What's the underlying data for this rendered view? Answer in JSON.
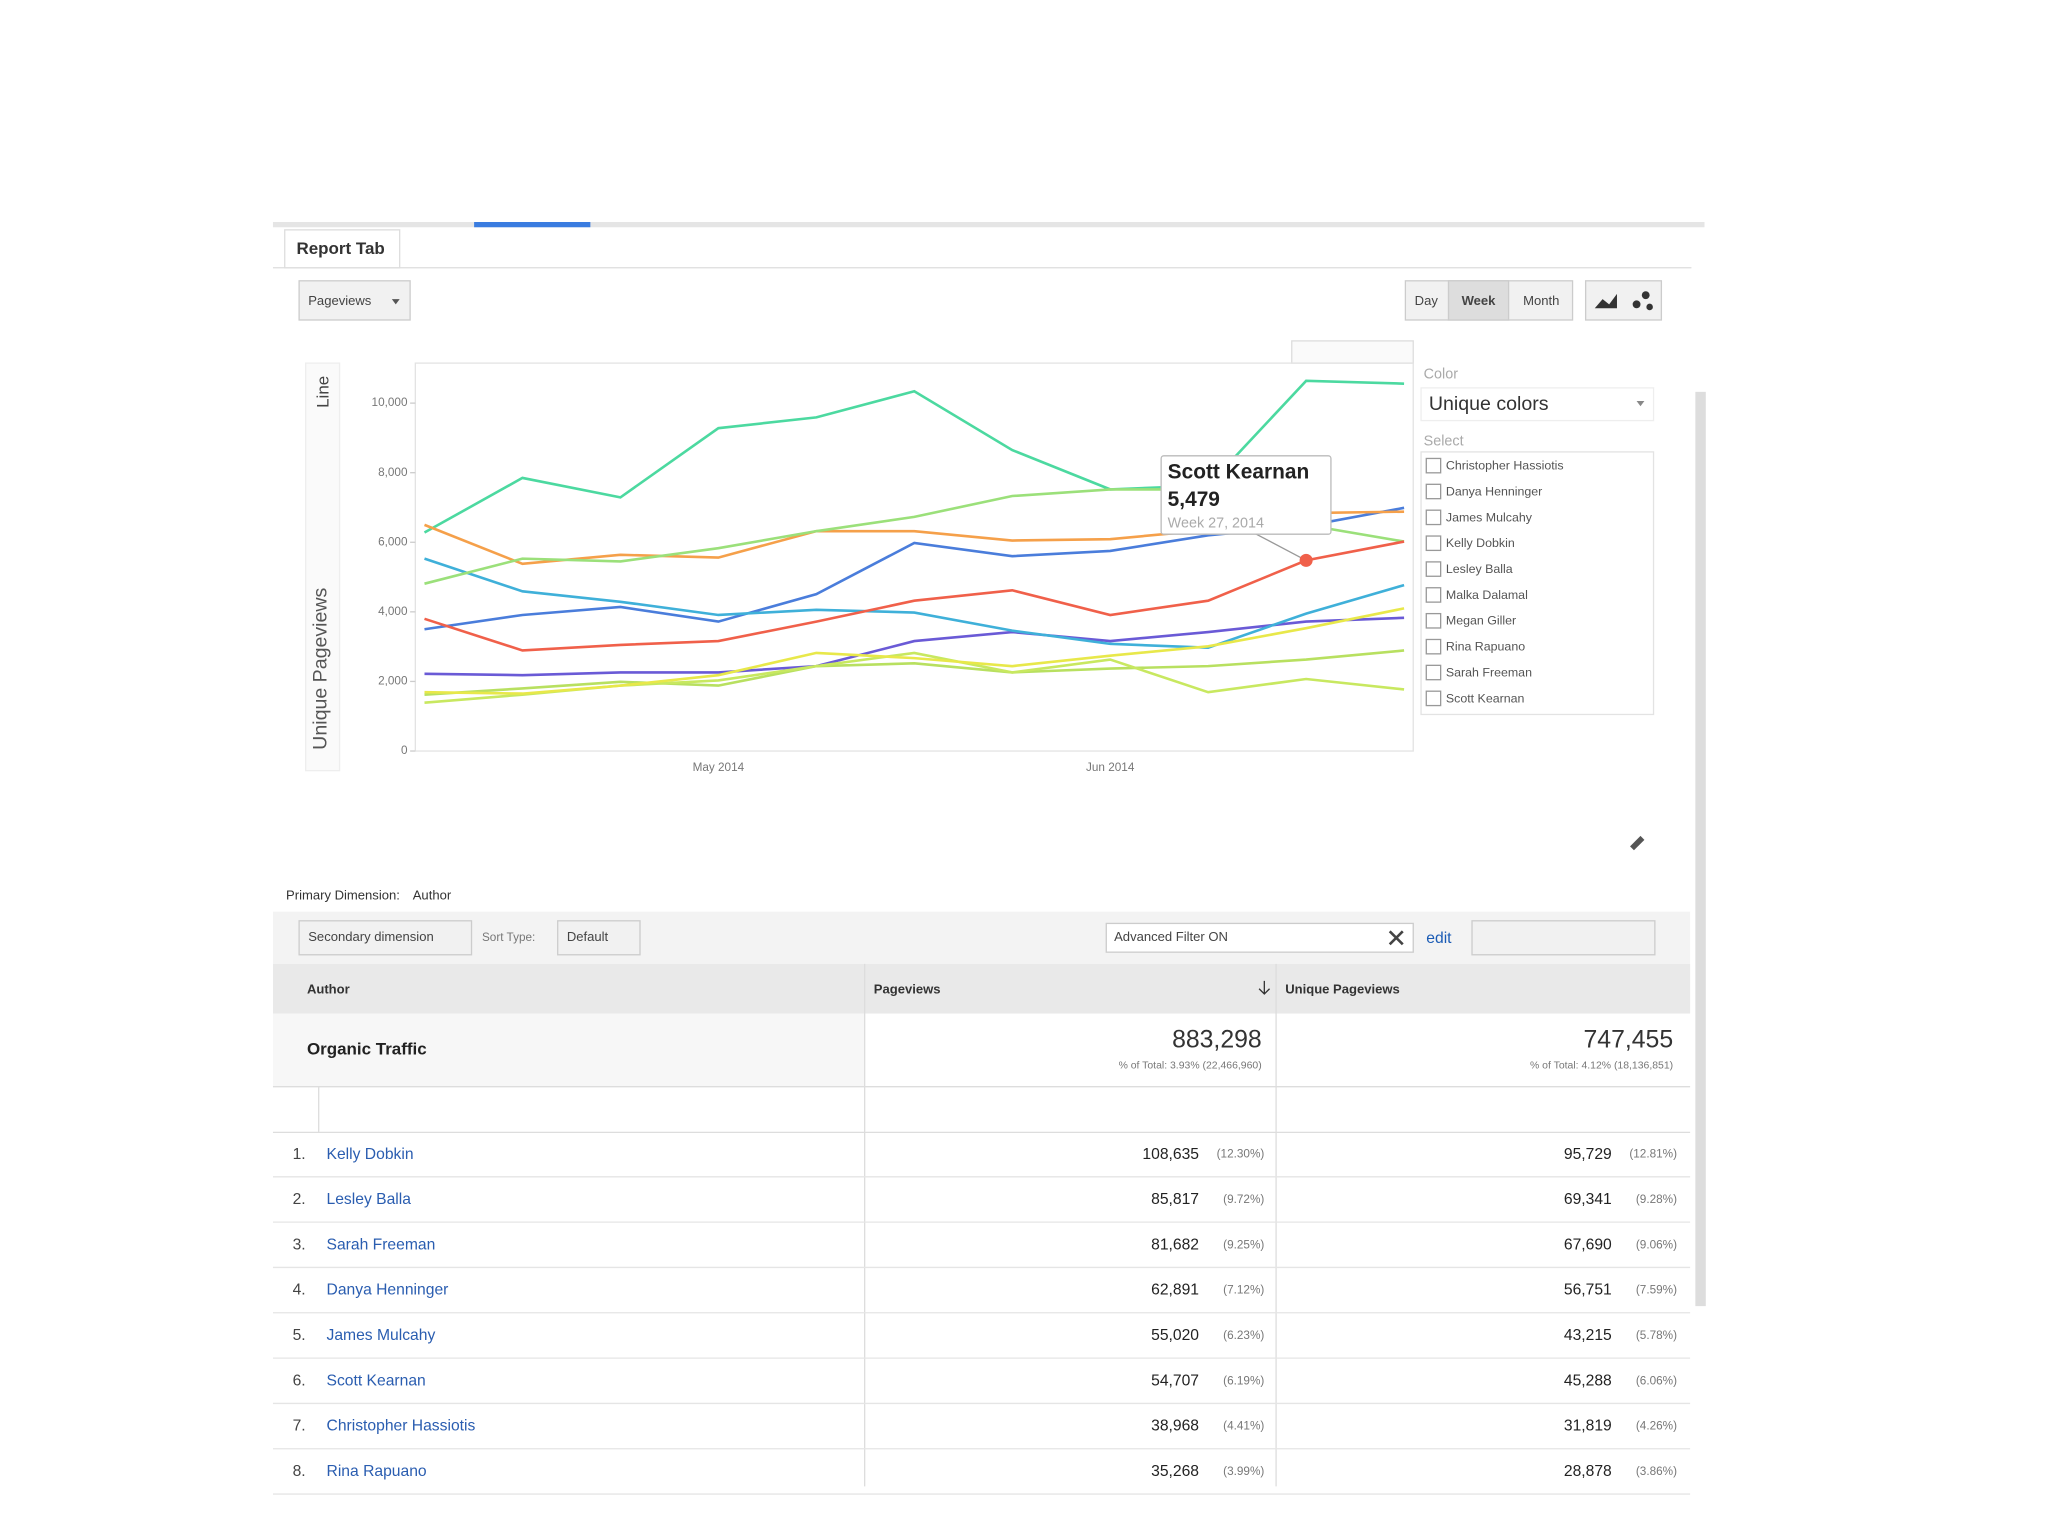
{
  "tab": "Report Tab",
  "metric_dropdown": "Pageviews",
  "granularity": [
    "Day",
    "Week",
    "Month"
  ],
  "chart_data": {
    "type": "line",
    "y_label": "Unique Pageviews",
    "chart_kind": "Line",
    "categories": [
      null,
      null,
      null,
      "May 2014",
      null,
      null,
      null,
      "Jun 2014",
      null,
      null,
      null
    ],
    "ylim": [
      0,
      11000
    ],
    "yticks": [
      0,
      {
        "value": 2000,
        "label": "2,000"
      },
      {
        "value": 4000,
        "label": "4,000"
      },
      {
        "value": 6000,
        "label": "6,000"
      },
      {
        "value": 8000,
        "label": "8,000"
      },
      {
        "value": 10000,
        "label": "10,000"
      }
    ],
    "grid": false,
    "series": [
      {
        "name": "Christopher Hassiotis",
        "color": "#6a5ad6",
        "values": [
          2220,
          2180,
          2260,
          2260,
          2440,
          3160,
          3420,
          3160,
          3420,
          3720,
          3830
        ]
      },
      {
        "name": "Danya Henninger",
        "color": "#4a7ddb",
        "values": [
          3500,
          3910,
          4140,
          3720,
          4510,
          5980,
          5600,
          5750,
          6200,
          6470,
          6990
        ]
      },
      {
        "name": "James Mulcahy",
        "color": "#3fb0d9",
        "values": [
          5530,
          4590,
          4290,
          3910,
          4060,
          3980,
          3460,
          3080,
          2970,
          3950,
          4770
        ]
      },
      {
        "name": "Kelly Dobkin",
        "color": "#4cd9a0",
        "values": [
          6280,
          7850,
          7290,
          9280,
          9590,
          10340,
          8650,
          7520,
          7630,
          10640,
          10560
        ]
      },
      {
        "name": "Lesley Balla",
        "color": "#f5a04a",
        "values": [
          6500,
          5380,
          5640,
          5560,
          6320,
          6320,
          6050,
          6090,
          6350,
          6840,
          6880
        ]
      },
      {
        "name": "Malka Dalamal",
        "color": "#b8e060",
        "values": [
          1620,
          1800,
          1990,
          1880,
          2440,
          2520,
          2260,
          2370,
          2440,
          2630,
          2890
        ]
      },
      {
        "name": "Megan Giller",
        "color": "#c8e860",
        "values": [
          1390,
          1620,
          1880,
          2030,
          2440,
          2820,
          2260,
          2630,
          1690,
          2070,
          1770
        ]
      },
      {
        "name": "Rina Rapuano",
        "color": "#e8e84a",
        "values": [
          1690,
          1650,
          1880,
          2180,
          2820,
          2670,
          2440,
          2740,
          3010,
          3530,
          4100
        ]
      },
      {
        "name": "Sarah Freeman",
        "color": "#9be07a",
        "values": [
          4810,
          5530,
          5450,
          5830,
          6320,
          6730,
          7330,
          7520,
          7520,
          6500,
          6020
        ]
      },
      {
        "name": "Scott Kearnan",
        "color": "#f0604a",
        "values": [
          3800,
          2890,
          3050,
          3160,
          3720,
          4320,
          4620,
          3910,
          4320,
          5479,
          6020
        ]
      }
    ],
    "tooltip": {
      "series": 9,
      "index": 9,
      "value_label": "5,479",
      "x_label": "Week 27, 2014"
    }
  },
  "color_panel": {
    "color_label": "Color",
    "color_value": "Unique colors",
    "select_label": "Select"
  },
  "primary_dimension": {
    "label": "Primary Dimension:",
    "value": "Author"
  },
  "toolbar": {
    "secondary": "Secondary dimension",
    "sort_label": "Sort Type:",
    "sort_value": "Default",
    "filter": "Advanced Filter ON",
    "edit": "edit"
  },
  "table": {
    "headers": [
      "Author",
      "Pageviews",
      "Unique Pageviews"
    ],
    "total": {
      "label": "Organic Traffic",
      "pageviews": "883,298",
      "pageviews_note": "% of Total: 3.93% (22,466,960)",
      "unique": "747,455",
      "unique_note": "% of Total: 4.12% (18,136,851)"
    },
    "rows": [
      [
        "1.",
        "Kelly Dobkin",
        "108,635",
        "(12.30%)",
        "95,729",
        "(12.81%)"
      ],
      [
        "2.",
        "Lesley Balla",
        "85,817",
        "(9.72%)",
        "69,341",
        "(9.28%)"
      ],
      [
        "3.",
        "Sarah Freeman",
        "81,682",
        "(9.25%)",
        "67,690",
        "(9.06%)"
      ],
      [
        "4.",
        "Danya Henninger",
        "62,891",
        "(7.12%)",
        "56,751",
        "(7.59%)"
      ],
      [
        "5.",
        "James Mulcahy",
        "55,020",
        "(6.23%)",
        "43,215",
        "(5.78%)"
      ],
      [
        "6.",
        "Scott Kearnan",
        "54,707",
        "(6.19%)",
        "45,288",
        "(6.06%)"
      ],
      [
        "7.",
        "Christopher Hassiotis",
        "38,968",
        "(4.41%)",
        "31,819",
        "(4.26%)"
      ],
      [
        "8.",
        "Rina Rapuano",
        "35,268",
        "(3.99%)",
        "28,878",
        "(3.86%)"
      ]
    ]
  }
}
